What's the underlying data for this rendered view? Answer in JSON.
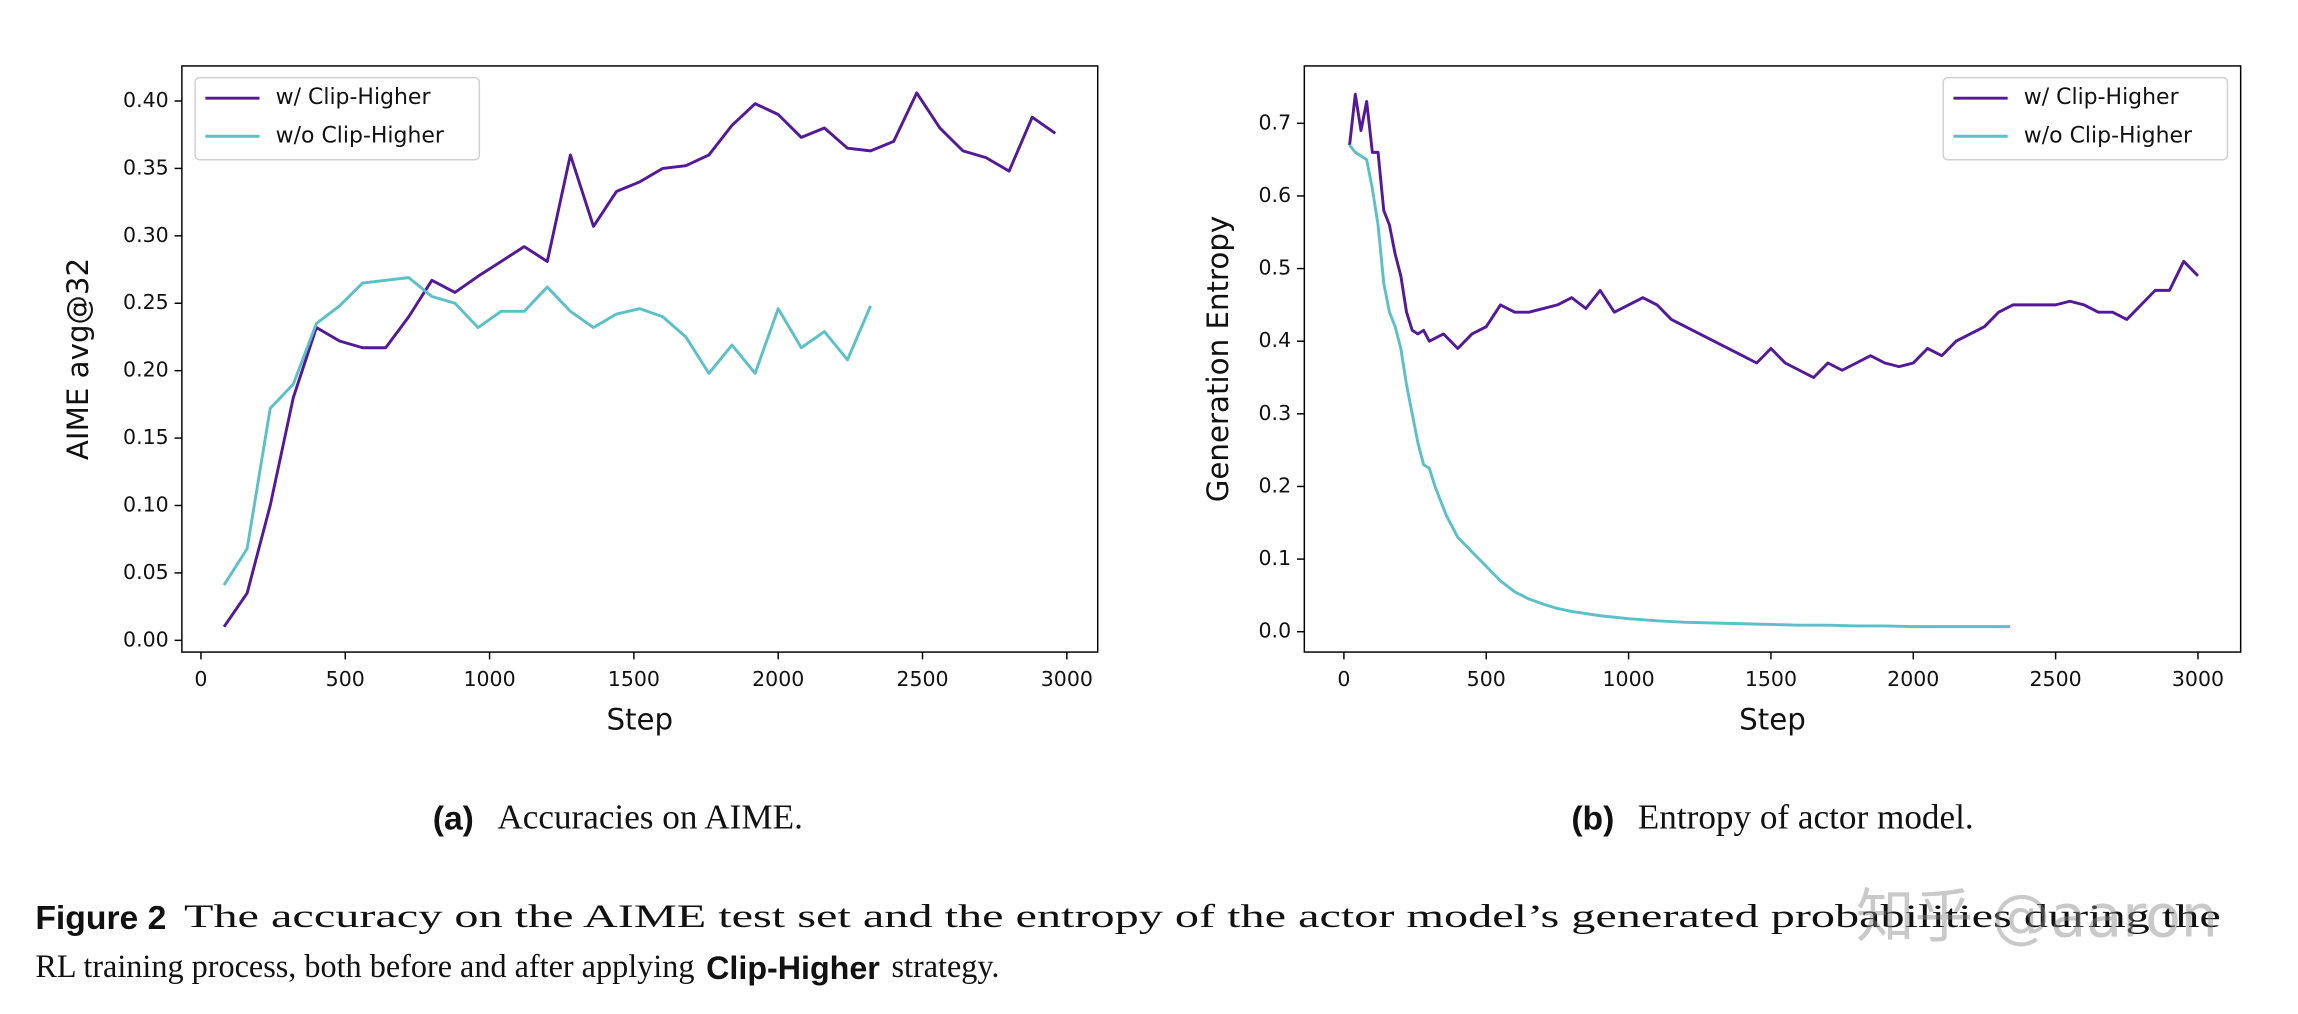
{
  "chart_data": [
    {
      "type": "line",
      "xlabel": "Step",
      "ylabel": "AIME avg@32",
      "caption_label": "(a)",
      "caption_text": "Accuracies on AIME.",
      "xlim": [
        -66,
        3107
      ],
      "ylim": [
        -0.0087,
        0.426
      ],
      "xticks": [
        0,
        500,
        1000,
        1500,
        2000,
        2500,
        3000
      ],
      "yticks": [
        {
          "value": 0,
          "label": "0.00"
        },
        0.05,
        {
          "value": 0.1,
          "label": "0.10"
        },
        0.15,
        {
          "value": 0.2,
          "label": "0.20"
        },
        0.25,
        {
          "value": 0.3,
          "label": "0.30"
        },
        0.35,
        {
          "value": 0.4,
          "label": "0.40"
        }
      ],
      "legend": "upper left",
      "series": [
        {
          "name": "w/ Clip-Higher",
          "color": "#53199a",
          "x": [
            80,
            160,
            240,
            320,
            400,
            480,
            560,
            640,
            720,
            800,
            880,
            960,
            1040,
            1120,
            1200,
            1280,
            1360,
            1440,
            1520,
            1600,
            1680,
            1760,
            1840,
            1920,
            2000,
            2080,
            2160,
            2240,
            2320,
            2400,
            2480,
            2560,
            2640,
            2720,
            2800,
            2880,
            2960
          ],
          "values": [
            0.01,
            0.035,
            0.1,
            0.18,
            0.232,
            0.222,
            0.217,
            0.217,
            0.24,
            0.267,
            0.258,
            0.27,
            0.281,
            0.292,
            0.281,
            0.36,
            0.307,
            0.333,
            0.34,
            0.35,
            0.352,
            0.36,
            0.382,
            0.398,
            0.39,
            0.373,
            0.38,
            0.365,
            0.363,
            0.37,
            0.406,
            0.38,
            0.363,
            0.358,
            0.348,
            0.388,
            0.376
          ]
        },
        {
          "name": "w/o Clip-Higher",
          "color": "#5bc0c8",
          "x": [
            80,
            160,
            240,
            320,
            400,
            480,
            560,
            640,
            720,
            800,
            880,
            960,
            1040,
            1120,
            1200,
            1280,
            1360,
            1440,
            1520,
            1600,
            1680,
            1760,
            1840,
            1920,
            2000,
            2080,
            2160,
            2240,
            2320
          ],
          "values": [
            0.041,
            0.068,
            0.172,
            0.19,
            0.235,
            0.248,
            0.265,
            0.267,
            0.269,
            0.255,
            0.25,
            0.232,
            0.244,
            0.244,
            0.262,
            0.244,
            0.232,
            0.242,
            0.246,
            0.24,
            0.225,
            0.198,
            0.219,
            0.198,
            0.246,
            0.217,
            0.229,
            0.208,
            0.248
          ]
        }
      ]
    },
    {
      "type": "line",
      "xlabel": "Step",
      "ylabel": "Generation Entropy",
      "caption_label": "(b)",
      "caption_text": "Entropy of actor model.",
      "xlim": [
        -139,
        3150
      ],
      "ylim": [
        -0.028,
        0.779
      ],
      "xticks": [
        0,
        500,
        1000,
        1500,
        2000,
        2500,
        3000
      ],
      "yticks": [
        {
          "value": 0,
          "label": "0.0"
        },
        0.1,
        0.2,
        0.3,
        0.4,
        0.5,
        0.6,
        0.7
      ],
      "legend": "upper right",
      "series": [
        {
          "name": "w/ Clip-Higher",
          "color": "#53199a",
          "x": [
            20,
            40,
            60,
            80,
            100,
            120,
            140,
            160,
            180,
            200,
            220,
            240,
            260,
            280,
            300,
            350,
            400,
            450,
            500,
            550,
            600,
            650,
            700,
            750,
            800,
            850,
            900,
            950,
            1000,
            1050,
            1100,
            1150,
            1200,
            1250,
            1300,
            1350,
            1400,
            1450,
            1500,
            1550,
            1600,
            1650,
            1700,
            1750,
            1800,
            1850,
            1900,
            1950,
            2000,
            2050,
            2100,
            2150,
            2200,
            2250,
            2300,
            2350,
            2400,
            2450,
            2500,
            2550,
            2600,
            2650,
            2700,
            2750,
            2800,
            2850,
            2900,
            2950,
            3000
          ],
          "values": [
            0.67,
            0.74,
            0.69,
            0.73,
            0.66,
            0.66,
            0.58,
            0.56,
            0.52,
            0.49,
            0.44,
            0.415,
            0.41,
            0.415,
            0.4,
            0.41,
            0.39,
            0.41,
            0.42,
            0.45,
            0.44,
            0.44,
            0.445,
            0.45,
            0.46,
            0.445,
            0.47,
            0.44,
            0.45,
            0.46,
            0.45,
            0.43,
            0.42,
            0.41,
            0.4,
            0.39,
            0.38,
            0.37,
            0.39,
            0.37,
            0.36,
            0.35,
            0.37,
            0.36,
            0.37,
            0.38,
            0.37,
            0.365,
            0.37,
            0.39,
            0.38,
            0.4,
            0.41,
            0.42,
            0.44,
            0.45,
            0.45,
            0.45,
            0.45,
            0.455,
            0.45,
            0.44,
            0.44,
            0.43,
            0.45,
            0.47,
            0.47,
            0.51,
            0.49
          ]
        },
        {
          "name": "w/o Clip-Higher",
          "color": "#5bc0c8",
          "x": [
            20,
            40,
            60,
            80,
            100,
            120,
            140,
            160,
            180,
            200,
            220,
            240,
            260,
            280,
            300,
            320,
            340,
            360,
            380,
            400,
            450,
            500,
            550,
            600,
            650,
            700,
            750,
            800,
            900,
            1000,
            1100,
            1200,
            1300,
            1400,
            1500,
            1600,
            1700,
            1800,
            1900,
            2000,
            2100,
            2200,
            2340
          ],
          "values": [
            0.67,
            0.66,
            0.655,
            0.65,
            0.61,
            0.56,
            0.48,
            0.44,
            0.42,
            0.39,
            0.34,
            0.3,
            0.26,
            0.23,
            0.225,
            0.2,
            0.18,
            0.16,
            0.145,
            0.13,
            0.11,
            0.09,
            0.07,
            0.055,
            0.045,
            0.038,
            0.032,
            0.028,
            0.022,
            0.018,
            0.015,
            0.013,
            0.012,
            0.011,
            0.01,
            0.009,
            0.009,
            0.008,
            0.008,
            0.007,
            0.007,
            0.007,
            0.007
          ]
        }
      ]
    }
  ],
  "figure_caption": {
    "label": "Figure 2",
    "line1": "The accuracy on the AIME test set and the entropy of the actor model’s generated probabilities during the",
    "line2_start": "RL training process, both before and after applying",
    "line2_bold": "Clip-Higher",
    "line2_end": "strategy."
  },
  "watermark": "知乎 @aaron"
}
